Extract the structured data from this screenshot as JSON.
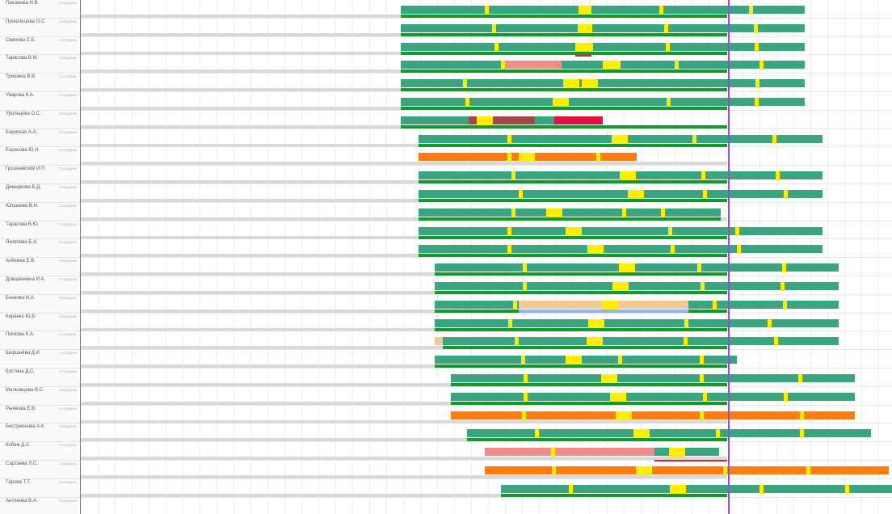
{
  "colors": {
    "shift": "#3aa57f",
    "base": "#139a2c",
    "break": "#ffee00",
    "orange": "#ff7d10",
    "pink": "#f08c8c",
    "tan": "#efc996",
    "blue": "#8fb4f1",
    "brown": "#a24a4a",
    "crimson": "#e2113d",
    "alert": "#d8262a",
    "now": "#8f4fd0"
  },
  "employees": [
    {
      "name": "Пахомова Н.В.",
      "role": "Сотрудник",
      "badges": []
    },
    {
      "name": "Прошлецова О.С.",
      "role": "Сотрудник",
      "badges": []
    },
    {
      "name": "Свинова С.Б.",
      "role": "Сотрудник",
      "badges": []
    },
    {
      "name": "Тарасова В.М.",
      "role": "Сотрудник",
      "badges": []
    },
    {
      "name": "Тришина В.В.",
      "role": "Сотрудник",
      "badges": []
    },
    {
      "name": "Уварова К.А.",
      "role": "Сотрудник",
      "badges": []
    },
    {
      "name": "Урольцова О.С.",
      "role": "Сотрудник",
      "badges": []
    },
    {
      "name": "Бориская А.А.",
      "role": "Сотрудник",
      "badges": []
    },
    {
      "name": "Борисова Ю.Н.",
      "role": "Сотрудник",
      "badges": []
    },
    {
      "name": "Грошневский И.П.",
      "role": "Сотрудник",
      "badges": []
    },
    {
      "name": "Демидкова Б.Д.",
      "role": "Сотрудник",
      "badges": []
    },
    {
      "name": "Юлшаева В.Н.",
      "role": "Сотрудник",
      "badges": []
    },
    {
      "name": "Тарасова В.Ю.",
      "role": "Сотрудник",
      "badges": []
    },
    {
      "name": "Яковлева Б.А.",
      "role": "Сотрудник",
      "badges": []
    },
    {
      "name": "Алёхина Е.В.",
      "role": "Сотрудник",
      "badges": []
    },
    {
      "name": "Довазенкина И.А.",
      "role": "Сотрудник",
      "badges": []
    },
    {
      "name": "Бонкова И.А.",
      "role": "Сотрудник",
      "badges": []
    },
    {
      "name": "Киренко Ю.Б.",
      "role": "Сотрудник",
      "badges": []
    },
    {
      "name": "Пискова К.А.",
      "role": "Сотрудник",
      "badges": []
    },
    {
      "name": "Шершнёва Д.И.",
      "role": "Сотрудник",
      "badges": []
    },
    {
      "name": "Костина Д.С.",
      "role": "Сотрудник",
      "badges": []
    },
    {
      "name": "Малковцева В.С.",
      "role": "Сотрудник",
      "badges": []
    },
    {
      "name": "Рыжкова Е.В.",
      "role": "Сотрудник",
      "badges": []
    },
    {
      "name": "Бестужонова А.К.",
      "role": "Сотрудник",
      "badges": []
    },
    {
      "name": "Кобеж Д.С.",
      "role": "Сотрудник",
      "badges": []
    },
    {
      "name": "Сартаева Л.С.",
      "role": "Сотрудник",
      "badges": []
    },
    {
      "name": "Тарова Т.Т.",
      "role": "Сотрудник",
      "badges": []
    },
    {
      "name": "Антонова В.А.",
      "role": "Сотрудник",
      "badges": []
    }
  ]
}
